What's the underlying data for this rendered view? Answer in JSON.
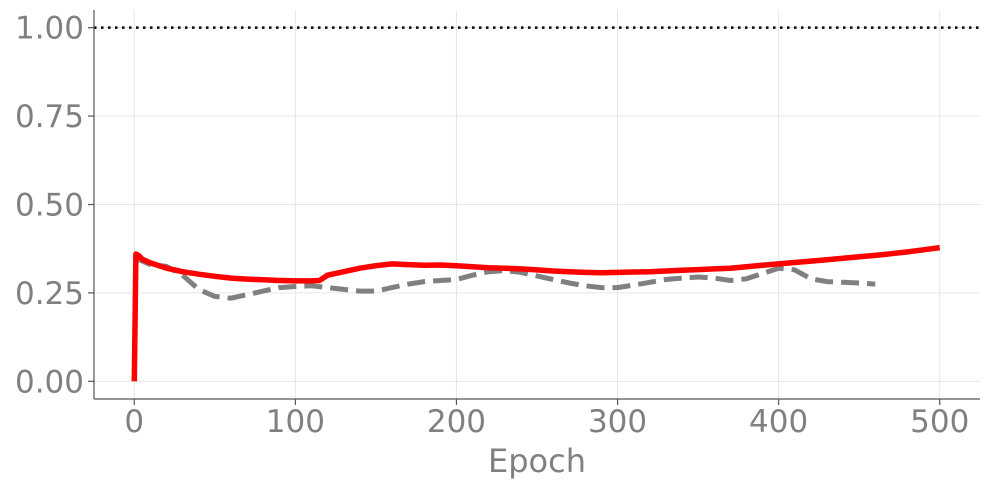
{
  "chart_data": {
    "type": "line",
    "title": "",
    "xlabel": "Epoch",
    "ylabel": "",
    "xlim": [
      -25,
      525
    ],
    "ylim": [
      -0.05,
      1.05
    ],
    "x_ticks": [
      0,
      100,
      200,
      300,
      400,
      500
    ],
    "x_tick_labels": [
      "0",
      "100",
      "200",
      "300",
      "400",
      "500"
    ],
    "y_ticks": [
      0.0,
      0.25,
      0.5,
      0.75,
      1.0
    ],
    "y_tick_labels": [
      "0.00",
      "0.25",
      "0.50",
      "0.75",
      "1.00"
    ],
    "grid": true,
    "reference_line": {
      "y": 1.0,
      "style": "dotted",
      "color": "#000000"
    },
    "series": [
      {
        "style": "solid",
        "color": "#ff0000",
        "x": [
          0,
          1,
          3,
          5,
          10,
          20,
          30,
          40,
          50,
          60,
          70,
          80,
          90,
          100,
          110,
          115,
          120,
          130,
          140,
          150,
          160,
          170,
          180,
          190,
          200,
          210,
          220,
          230,
          240,
          250,
          260,
          270,
          280,
          290,
          300,
          310,
          320,
          330,
          340,
          350,
          360,
          370,
          380,
          390,
          400,
          410,
          420,
          430,
          440,
          450,
          460,
          470,
          480,
          490,
          500
        ],
        "y": [
          0.0,
          0.36,
          0.355,
          0.345,
          0.335,
          0.32,
          0.31,
          0.303,
          0.297,
          0.292,
          0.289,
          0.287,
          0.285,
          0.284,
          0.284,
          0.285,
          0.3,
          0.31,
          0.32,
          0.327,
          0.332,
          0.33,
          0.328,
          0.329,
          0.327,
          0.324,
          0.321,
          0.32,
          0.318,
          0.315,
          0.312,
          0.31,
          0.308,
          0.307,
          0.308,
          0.309,
          0.31,
          0.312,
          0.314,
          0.316,
          0.318,
          0.32,
          0.324,
          0.328,
          0.332,
          0.336,
          0.34,
          0.344,
          0.348,
          0.352,
          0.356,
          0.361,
          0.366,
          0.372,
          0.378
        ]
      },
      {
        "style": "dashed",
        "color": "#808080",
        "x": [
          0,
          5,
          10,
          20,
          30,
          40,
          50,
          60,
          70,
          80,
          90,
          100,
          110,
          120,
          130,
          140,
          150,
          160,
          170,
          180,
          190,
          200,
          210,
          220,
          230,
          240,
          250,
          260,
          270,
          280,
          290,
          300,
          310,
          320,
          330,
          340,
          350,
          360,
          370,
          380,
          390,
          400,
          410,
          420,
          430,
          440,
          450,
          460
        ],
        "y": [
          0.35,
          0.34,
          0.33,
          0.325,
          0.3,
          0.26,
          0.24,
          0.235,
          0.245,
          0.255,
          0.265,
          0.268,
          0.27,
          0.265,
          0.26,
          0.255,
          0.255,
          0.265,
          0.275,
          0.282,
          0.285,
          0.288,
          0.3,
          0.31,
          0.313,
          0.308,
          0.298,
          0.288,
          0.278,
          0.27,
          0.265,
          0.265,
          0.272,
          0.28,
          0.288,
          0.292,
          0.295,
          0.292,
          0.285,
          0.29,
          0.305,
          0.32,
          0.315,
          0.29,
          0.282,
          0.28,
          0.278,
          0.275
        ]
      }
    ]
  }
}
